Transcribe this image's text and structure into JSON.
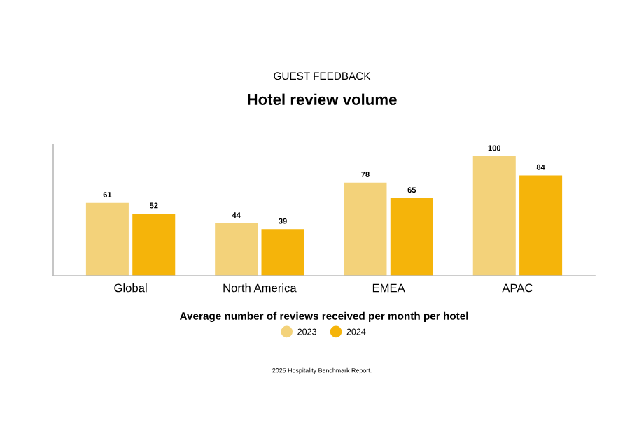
{
  "chart_data": {
    "type": "bar",
    "subtitle": "GUEST FEEDBACK",
    "title": "Hotel review volume",
    "categories": [
      "Global",
      "North America",
      "EMEA",
      "APAC"
    ],
    "series": [
      {
        "name": "2023",
        "color": "#f3d27a",
        "values": [
          61,
          44,
          78,
          100
        ]
      },
      {
        "name": "2024",
        "color": "#f5b40a",
        "values": [
          52,
          39,
          65,
          84
        ]
      }
    ],
    "data_labels": true,
    "xlabel": "Average number of reviews received per month per hotel",
    "ylim": [
      0,
      110
    ],
    "tick_labels": "x",
    "legend": "bottom",
    "grid": false,
    "annotations": [
      "2025 Hospitality Benchmark Report."
    ]
  }
}
